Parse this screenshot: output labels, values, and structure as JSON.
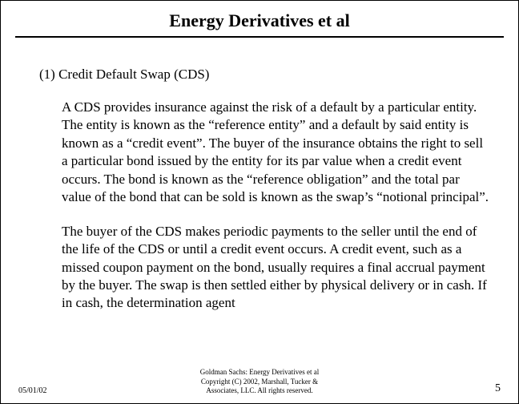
{
  "title": "Energy Derivatives et al",
  "section": {
    "number": "(1)",
    "heading": "Credit Default Swap (CDS)",
    "paragraphs": [
      "A CDS provides insurance against the risk of a default by a particular entity.  The entity is known as the “reference entity” and a default by said entity is known as a “credit event”.  The buyer of the insurance obtains the right to sell a particular bond issued by the entity for its par value when a credit event occurs.  The bond is known as the “reference obligation” and the total par value of the bond that can be sold is known as the swap’s “notional principal”.",
      "The buyer of the CDS makes periodic payments to the seller until the end of the life of the CDS or until a credit event occurs.  A credit event, such as a missed coupon payment on the bond, usually requires a final accrual payment by the buyer.  The swap is then settled either by physical delivery or in cash.  If in cash, the determination agent"
    ]
  },
  "footer": {
    "date": "05/01/02",
    "line1": "Goldman Sachs: Energy Derivatives et al",
    "line2": "Copyright (C) 2002, Marshall, Tucker &",
    "line3": "Associates, LLC.   All rights reserved.",
    "page": "5"
  }
}
